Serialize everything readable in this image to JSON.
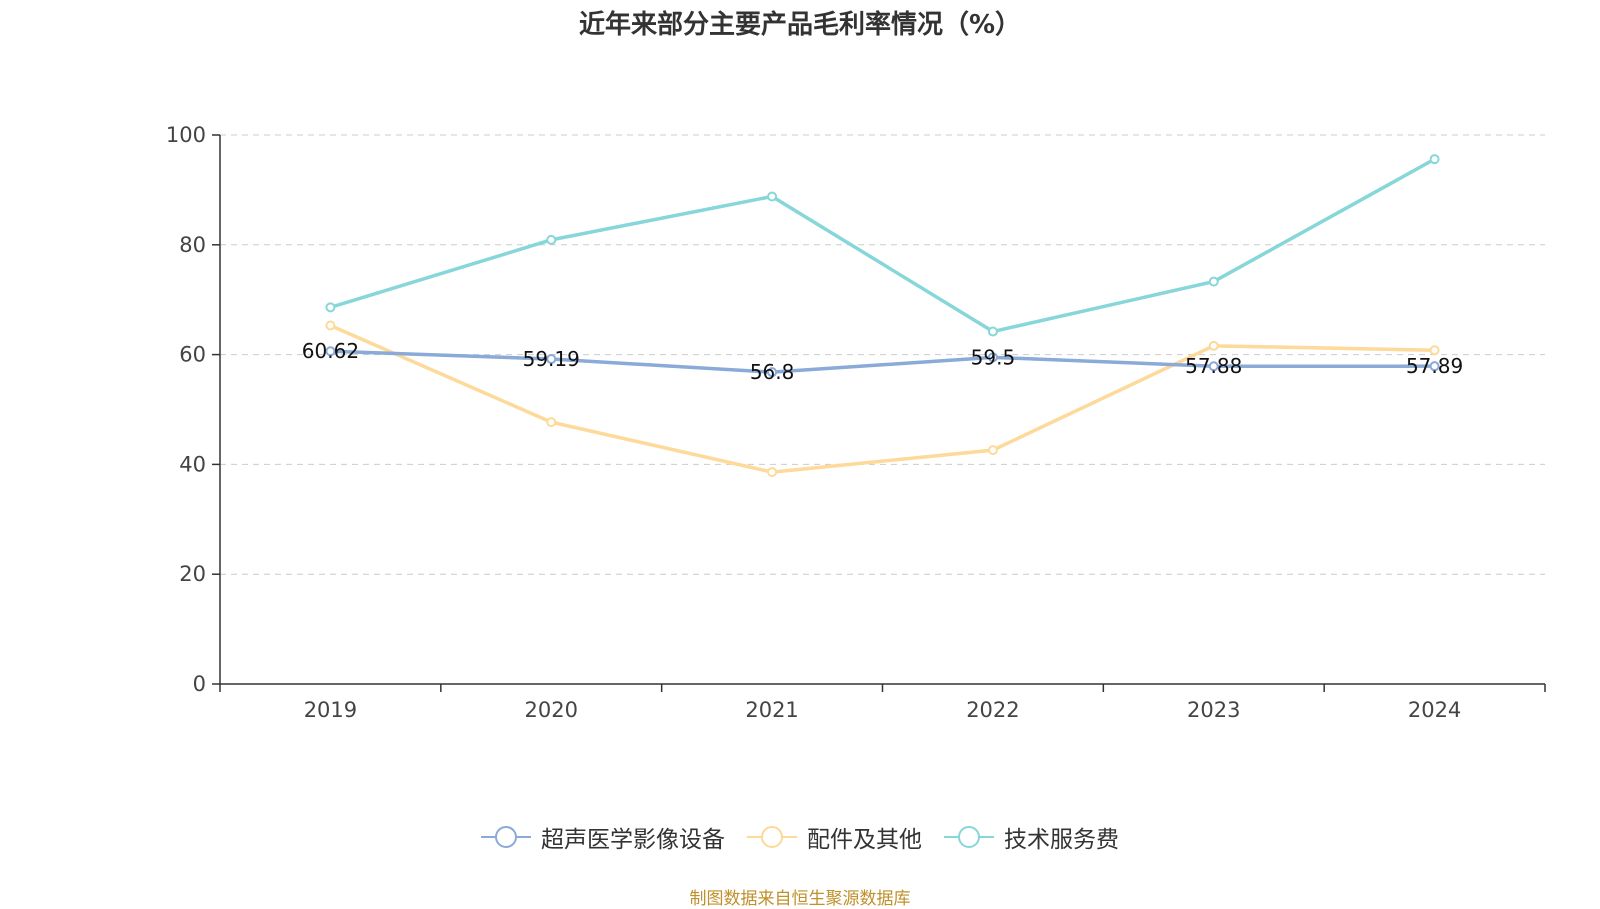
{
  "chart_data": {
    "type": "line",
    "title": "近年来部分主要产品毛利率情况（%）",
    "categories": [
      "2019",
      "2020",
      "2021",
      "2022",
      "2023",
      "2024"
    ],
    "ylim": [
      0,
      100
    ],
    "yticks": [
      0,
      20,
      40,
      60,
      80,
      100
    ],
    "grid": true,
    "legend_position": "bottom",
    "series": [
      {
        "name": "超声医学影像设备",
        "color": "#8aaad8",
        "values": [
          60.62,
          59.19,
          56.8,
          59.5,
          57.88,
          57.89
        ],
        "labels": [
          "60.62",
          "59.19",
          "56.8",
          "59.5",
          "57.88",
          "57.89"
        ]
      },
      {
        "name": "配件及其他",
        "color": "#fdd99a",
        "values": [
          65.3,
          47.7,
          38.6,
          42.6,
          61.6,
          60.8
        ]
      },
      {
        "name": "技术服务费",
        "color": "#86d6da",
        "values": [
          68.6,
          80.9,
          88.8,
          64.2,
          73.3,
          95.6
        ]
      }
    ]
  },
  "source": "制图数据来自恒生聚源数据库"
}
